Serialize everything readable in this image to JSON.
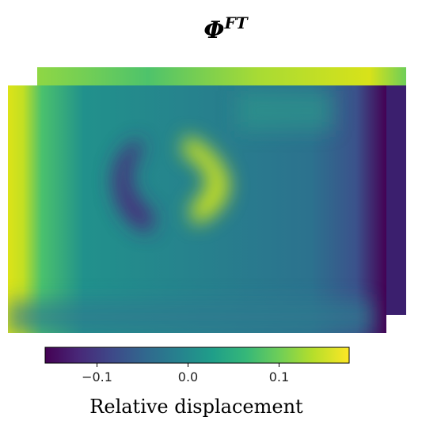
{
  "chart_data": {
    "type": "heatmap",
    "title": {
      "symbol": "Φ",
      "superscript": "FT"
    },
    "colorbar": {
      "label": "Relative displacement",
      "clim": [
        -0.157,
        0.177
      ],
      "ticks": [
        {
          "value": -0.1,
          "label": "−0.1"
        },
        {
          "value": 0.0,
          "label": "0.0"
        },
        {
          "value": 0.1,
          "label": "0.1"
        }
      ],
      "colormap": "viridis"
    }
  }
}
